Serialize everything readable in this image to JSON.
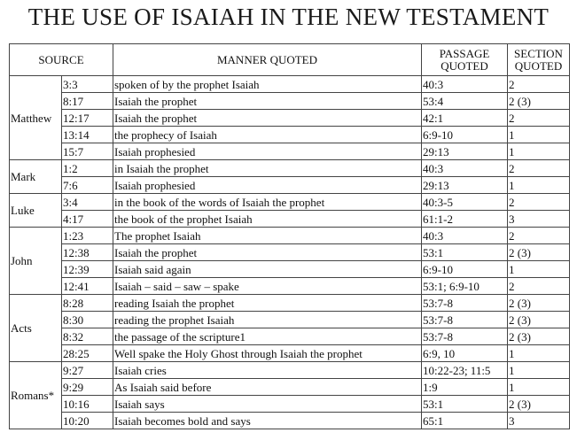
{
  "title": "THE USE OF ISAIAH IN THE NEW TESTAMENT",
  "headers": {
    "source": "SOURCE",
    "manner": "MANNER QUOTED",
    "passage_l1": "PASSAGE",
    "passage_l2": "QUOTED",
    "section_l1": "SECTION",
    "section_l2": "QUOTED"
  },
  "groups": [
    {
      "book": "Matthew",
      "rows": [
        {
          "ref": "3:3",
          "manner": "spoken of by the prophet Isaiah",
          "passage": "40:3",
          "section": "2"
        },
        {
          "ref": "8:17",
          "manner": "Isaiah the prophet",
          "passage": "53:4",
          "section": "2 (3)"
        },
        {
          "ref": "12:17",
          "manner": "Isaiah the prophet",
          "passage": "42:1",
          "section": "2"
        },
        {
          "ref": "13:14",
          "manner": "the prophecy of Isaiah",
          "passage": "6:9-10",
          "section": "1"
        },
        {
          "ref": "15:7",
          "manner": "Isaiah prophesied",
          "passage": "29:13",
          "section": "1"
        }
      ]
    },
    {
      "book": "Mark",
      "rows": [
        {
          "ref": "1:2",
          "manner": "in Isaiah the prophet",
          "passage": "40:3",
          "section": "2"
        },
        {
          "ref": "7:6",
          "manner": "Isaiah prophesied",
          "passage": "29:13",
          "section": "1"
        }
      ]
    },
    {
      "book": "Luke",
      "rows": [
        {
          "ref": "3:4",
          "manner": "in the book of the words of Isaiah the prophet",
          "passage": "40:3-5",
          "section": "2"
        },
        {
          "ref": "4:17",
          "manner": "the book of the prophet Isaiah",
          "passage": "61:1-2",
          "section": "3"
        }
      ]
    },
    {
      "book": "John",
      "rows": [
        {
          "ref": "1:23",
          "manner": "The prophet Isaiah",
          "passage": "40:3",
          "section": "2"
        },
        {
          "ref": "12:38",
          "manner": "Isaiah the prophet",
          "passage": "53:1",
          "section": "2 (3)"
        },
        {
          "ref": "12:39",
          "manner": "Isaiah said again",
          "passage": "6:9-10",
          "section": "1"
        },
        {
          "ref": "12:41",
          "manner": "Isaiah – said – saw – spake",
          "passage": "53:1; 6:9-10",
          "section": "2"
        }
      ]
    },
    {
      "book": "Acts",
      "rows": [
        {
          "ref": "8:28",
          "manner": "reading Isaiah the prophet",
          "passage": "53:7-8",
          "section": "2 (3)"
        },
        {
          "ref": "8:30",
          "manner": "reading the prophet Isaiah",
          "passage": "53:7-8",
          "section": "2 (3)"
        },
        {
          "ref": "8:32",
          "manner": "the passage of the scripture1",
          "passage": "53:7-8",
          "section": "2 (3)"
        },
        {
          "ref": "28:25",
          "manner": "Well spake the Holy Ghost through Isaiah the prophet",
          "passage": "6:9, 10",
          "section": "1"
        }
      ]
    },
    {
      "book": "Romans*",
      "rows": [
        {
          "ref": "9:27",
          "manner": "Isaiah cries",
          "passage": "10:22-23; 11:5",
          "section": "1"
        },
        {
          "ref": "9:29",
          "manner": "As Isaiah said before",
          "passage": "1:9",
          "section": "1"
        },
        {
          "ref": "10:16",
          "manner": "Isaiah says",
          "passage": "53:1",
          "section": "2 (3)"
        },
        {
          "ref": "10:20",
          "manner": "Isaiah becomes bold and says",
          "passage": "65:1",
          "section": "3"
        }
      ]
    }
  ]
}
